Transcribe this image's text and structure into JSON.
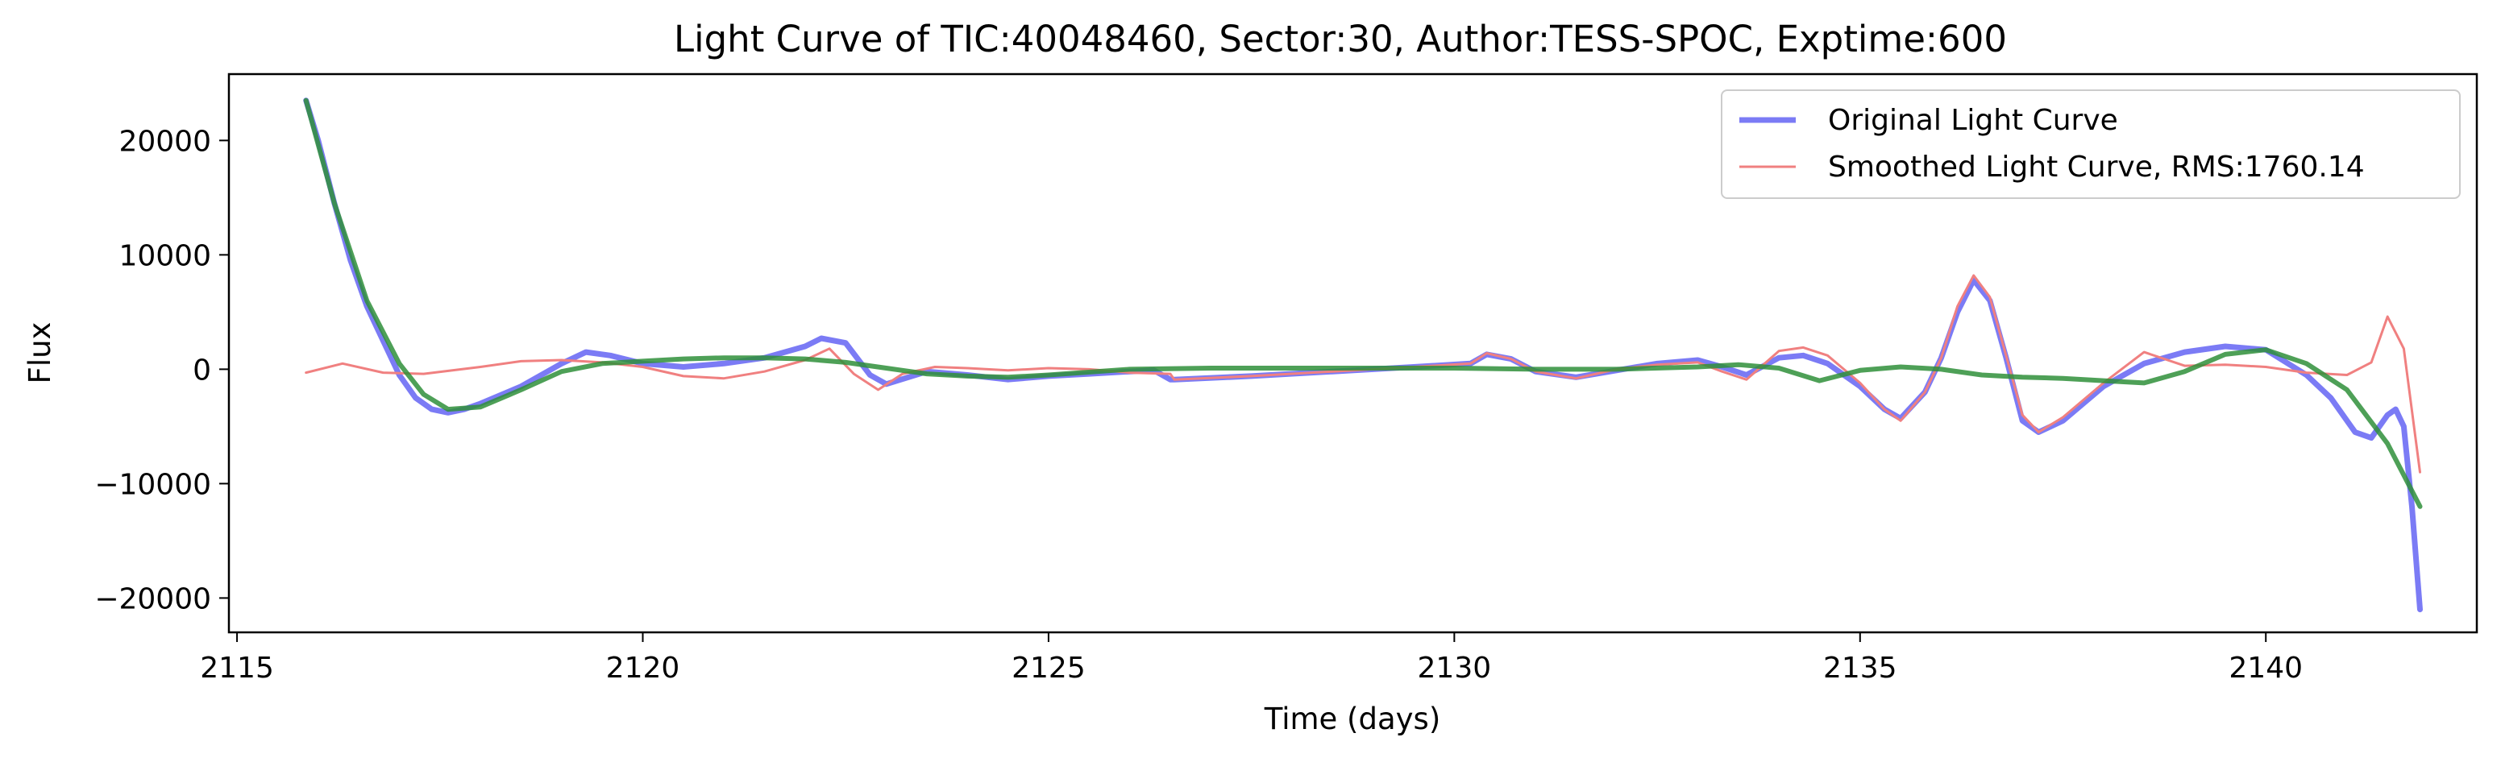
{
  "chart_data": {
    "type": "line",
    "title": "Light Curve of TIC:40048460, Sector:30, Author:TESS-SPOC, Exptime:600",
    "xlabel": "Time (days)",
    "ylabel": "Flux",
    "xlim": [
      2114.9,
      2142.6
    ],
    "ylim": [
      -23000,
      25800
    ],
    "xticks": [
      2115,
      2120,
      2125,
      2130,
      2135,
      2140
    ],
    "xtick_labels": [
      "2115",
      "2120",
      "2125",
      "2130",
      "2135",
      "2140"
    ],
    "yticks": [
      20000,
      10000,
      0,
      -10000,
      -20000
    ],
    "ytick_labels": [
      "20000",
      "10000",
      "0",
      "−10000",
      "−20000"
    ],
    "grid": false,
    "legend_position": "top-right",
    "series": [
      {
        "name": "Original Light Curve",
        "color": "#7b7bf5",
        "x": [
          2115.85,
          2116.0,
          2116.2,
          2116.4,
          2116.6,
          2116.8,
          2117.0,
          2117.2,
          2117.4,
          2117.6,
          2117.8,
          2118.0,
          2118.5,
          2119.0,
          2119.3,
          2119.6,
          2120.0,
          2120.5,
          2121.0,
          2121.5,
          2122.0,
          2122.2,
          2122.5,
          2122.8,
          2123.0,
          2123.5,
          2124.0,
          2124.5,
          2125.0,
          2125.5,
          2126.0,
          2126.3,
          2126.5,
          2126.55,
          2127.5,
          2128.5,
          2129.5,
          2130.2,
          2130.4,
          2130.7,
          2131.0,
          2131.5,
          2132.0,
          2132.5,
          2133.0,
          2133.3,
          2133.6,
          2134.0,
          2134.3,
          2134.6,
          2135.0,
          2135.3,
          2135.5,
          2135.8,
          2136.0,
          2136.2,
          2136.4,
          2136.6,
          2136.8,
          2137.0,
          2137.2,
          2137.5,
          2138.0,
          2138.5,
          2139.0,
          2139.5,
          2140.0,
          2140.5,
          2140.8,
          2141.1,
          2141.3,
          2141.5,
          2141.6,
          2141.7,
          2141.8,
          2141.9
        ],
        "y": [
          23500,
          20000,
          14500,
          9500,
          5500,
          2500,
          -500,
          -2500,
          -3500,
          -3800,
          -3500,
          -3000,
          -1500,
          500,
          1500,
          1200,
          500,
          200,
          500,
          1000,
          2000,
          2700,
          2300,
          -500,
          -1300,
          -200,
          -500,
          -900,
          -600,
          -400,
          -200,
          -100,
          -900,
          -900,
          -600,
          -200,
          200,
          500,
          1300,
          900,
          -200,
          -700,
          -100,
          500,
          800,
          200,
          -500,
          1000,
          1200,
          500,
          -1500,
          -3500,
          -4300,
          -2000,
          1000,
          5000,
          7800,
          6000,
          1000,
          -4500,
          -5500,
          -4500,
          -1500,
          500,
          1500,
          2000,
          1700,
          -500,
          -2500,
          -5500,
          -6000,
          -4000,
          -3500,
          -5000,
          -12000,
          -21000
        ]
      },
      {
        "name": "Smoothed Light Curve, RMS:1760.14",
        "color": "#f08080",
        "x": [
          2115.85,
          2116.3,
          2116.8,
          2117.3,
          2118.0,
          2118.5,
          2119.0,
          2119.5,
          2120.0,
          2120.5,
          2121.0,
          2121.5,
          2122.0,
          2122.3,
          2122.6,
          2122.9,
          2123.2,
          2123.6,
          2124.0,
          2124.5,
          2125.0,
          2125.5,
          2126.0,
          2126.5,
          2126.55,
          2127.5,
          2128.5,
          2129.5,
          2130.2,
          2130.4,
          2130.7,
          2131.0,
          2131.5,
          2132.0,
          2132.5,
          2133.0,
          2133.3,
          2133.6,
          2134.0,
          2134.3,
          2134.6,
          2135.0,
          2135.3,
          2135.5,
          2135.8,
          2136.0,
          2136.2,
          2136.4,
          2136.6,
          2136.8,
          2137.0,
          2137.2,
          2137.5,
          2138.0,
          2138.5,
          2139.0,
          2139.5,
          2140.0,
          2140.5,
          2141.0,
          2141.3,
          2141.5,
          2141.7,
          2141.9
        ],
        "y": [
          -300,
          500,
          -300,
          -400,
          200,
          700,
          800,
          600,
          200,
          -600,
          -800,
          -200,
          800,
          1800,
          -400,
          -1800,
          -400,
          200,
          100,
          -100,
          100,
          0,
          -300,
          -400,
          -900,
          -600,
          -200,
          200,
          500,
          1400,
          900,
          -200,
          -800,
          0,
          400,
          600,
          -200,
          -900,
          1600,
          1900,
          1200,
          -1200,
          -3500,
          -4500,
          -2000,
          1000,
          5500,
          8200,
          6300,
          1200,
          -4000,
          -5500,
          -4200,
          -1200,
          1500,
          300,
          400,
          200,
          -300,
          -500,
          600,
          4600,
          1800,
          -9000
        ]
      },
      {
        "name": "",
        "color": "#2f8f3a",
        "x": [
          2115.85,
          2116.2,
          2116.6,
          2117.0,
          2117.3,
          2117.6,
          2118.0,
          2118.5,
          2119.0,
          2119.5,
          2120.0,
          2120.5,
          2121.0,
          2121.5,
          2122.0,
          2122.5,
          2123.0,
          2123.5,
          2124.0,
          2124.5,
          2125.0,
          2126.0,
          2127.0,
          2128.0,
          2129.0,
          2130.0,
          2131.0,
          2132.0,
          2133.0,
          2133.5,
          2134.0,
          2134.5,
          2135.0,
          2135.5,
          2136.0,
          2136.5,
          2137.0,
          2137.5,
          2138.0,
          2138.5,
          2139.0,
          2139.5,
          2140.0,
          2140.5,
          2141.0,
          2141.5,
          2141.9
        ],
        "y": [
          23500,
          14500,
          6000,
          500,
          -2200,
          -3500,
          -3300,
          -1800,
          -200,
          500,
          700,
          900,
          1000,
          1000,
          900,
          600,
          100,
          -400,
          -600,
          -700,
          -500,
          0,
          100,
          100,
          100,
          100,
          0,
          0,
          200,
          400,
          100,
          -1000,
          -100,
          200,
          0,
          -500,
          -700,
          -800,
          -1000,
          -1200,
          -200,
          1300,
          1700,
          500,
          -1800,
          -6500,
          -12000
        ]
      }
    ]
  }
}
